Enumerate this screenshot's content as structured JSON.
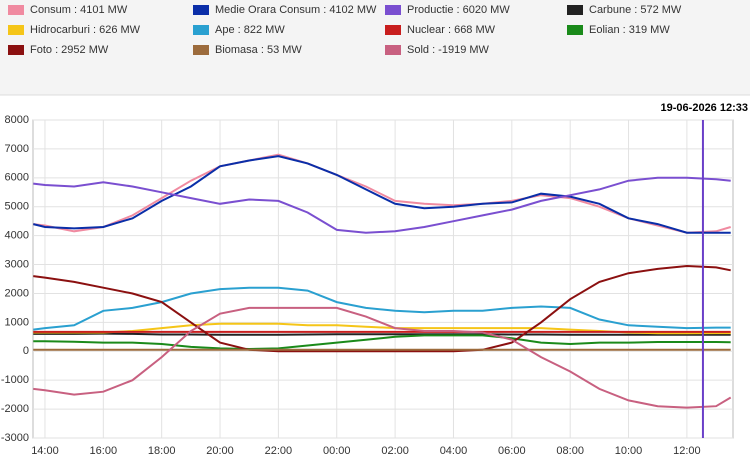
{
  "chart_data": {
    "type": "line",
    "x": [
      13.6,
      14,
      15,
      16,
      17,
      18,
      19,
      20,
      21,
      22,
      23,
      24,
      25,
      26,
      27,
      28,
      29,
      30,
      31,
      32,
      33,
      34,
      35,
      36,
      37,
      37.5
    ],
    "xlim": [
      13.59,
      37.58
    ],
    "xticks": [
      {
        "value": 14,
        "label": "14:00"
      },
      {
        "value": 16,
        "label": "16:00"
      },
      {
        "value": 18,
        "label": "18:00"
      },
      {
        "value": 20,
        "label": "20:00"
      },
      {
        "value": 22,
        "label": "22:00"
      },
      {
        "value": 24,
        "label": "00:00"
      },
      {
        "value": 26,
        "label": "02:00"
      },
      {
        "value": 28,
        "label": "04:00"
      },
      {
        "value": 30,
        "label": "06:00"
      },
      {
        "value": 32,
        "label": "08:00"
      },
      {
        "value": 34,
        "label": "10:00"
      },
      {
        "value": 36,
        "label": "12:00"
      }
    ],
    "ylim": [
      -3000,
      8000
    ],
    "yticks": [
      -3000,
      -2000,
      -1000,
      0,
      1000,
      2000,
      3000,
      4000,
      5000,
      6000,
      7000,
      8000
    ],
    "grid": true,
    "cursor_x": 36.55,
    "cursor_label": "19-06-2026 12:33",
    "cursor_color": "#6a3fc8",
    "series": [
      {
        "name": "Consum : 4101 MW",
        "color": "#f08aa0",
        "values": [
          4400,
          4350,
          4150,
          4300,
          4700,
          5300,
          5900,
          6400,
          6600,
          6800,
          6500,
          6100,
          5700,
          5200,
          5100,
          5050,
          5100,
          5200,
          5400,
          5300,
          5000,
          4600,
          4350,
          4100,
          4150,
          4300
        ]
      },
      {
        "name": "Medie Orara Consum : 4102 MW",
        "color": "#0a2ea8",
        "values": [
          4400,
          4300,
          4250,
          4300,
          4600,
          5200,
          5700,
          6400,
          6600,
          6750,
          6500,
          6100,
          5600,
          5100,
          4950,
          5000,
          5100,
          5150,
          5450,
          5350,
          5100,
          4600,
          4400,
          4100,
          4100,
          4100
        ]
      },
      {
        "name": "Productie : 6020 MW",
        "color": "#7a4fd0",
        "values": [
          5800,
          5750,
          5700,
          5850,
          5700,
          5500,
          5300,
          5100,
          5250,
          5200,
          4800,
          4200,
          4100,
          4150,
          4300,
          4500,
          4700,
          4900,
          5200,
          5400,
          5600,
          5900,
          6000,
          6000,
          5950,
          5900
        ]
      },
      {
        "name": "Carbune : 572 MW",
        "color": "#222222",
        "values": [
          600,
          600,
          600,
          610,
          600,
          580,
          580,
          570,
          570,
          570,
          580,
          590,
          590,
          590,
          590,
          590,
          590,
          580,
          580,
          570,
          570,
          570,
          570,
          570,
          570,
          570
        ]
      },
      {
        "name": "Hidrocarburi : 626 MW",
        "color": "#f5c518",
        "values": [
          650,
          650,
          650,
          650,
          700,
          800,
          900,
          950,
          950,
          950,
          900,
          900,
          850,
          800,
          800,
          800,
          800,
          800,
          800,
          750,
          700,
          650,
          620,
          620,
          630,
          630
        ]
      },
      {
        "name": "Ape : 822 MW",
        "color": "#2aa0d0",
        "values": [
          750,
          800,
          900,
          1400,
          1500,
          1700,
          2000,
          2150,
          2200,
          2200,
          2100,
          1700,
          1500,
          1400,
          1350,
          1400,
          1400,
          1500,
          1550,
          1500,
          1100,
          900,
          850,
          800,
          820,
          820
        ]
      },
      {
        "name": "Nuclear : 668 MW",
        "color": "#c81e1e",
        "values": [
          670,
          670,
          670,
          670,
          670,
          670,
          670,
          670,
          670,
          670,
          670,
          670,
          670,
          670,
          670,
          670,
          670,
          670,
          670,
          670,
          670,
          670,
          670,
          670,
          670,
          670
        ]
      },
      {
        "name": "Eolian : 319 MW",
        "color": "#1a8a1a",
        "values": [
          350,
          350,
          330,
          300,
          300,
          250,
          150,
          100,
          80,
          100,
          200,
          300,
          400,
          500,
          550,
          550,
          550,
          450,
          300,
          250,
          300,
          300,
          320,
          320,
          320,
          310
        ]
      },
      {
        "name": "Foto : 2952 MW",
        "color": "#8b1010",
        "values": [
          2600,
          2550,
          2400,
          2200,
          2000,
          1700,
          1000,
          300,
          50,
          0,
          0,
          0,
          0,
          0,
          0,
          0,
          50,
          300,
          1000,
          1800,
          2400,
          2700,
          2850,
          2950,
          2900,
          2800
        ]
      },
      {
        "name": "Biomasa : 53 MW",
        "color": "#9c6b3c",
        "values": [
          50,
          50,
          50,
          50,
          50,
          50,
          50,
          50,
          50,
          50,
          50,
          50,
          50,
          50,
          50,
          50,
          50,
          50,
          50,
          50,
          50,
          50,
          50,
          50,
          50,
          50
        ]
      },
      {
        "name": "Sold : -1919 MW",
        "color": "#c86080",
        "values": [
          -1300,
          -1350,
          -1500,
          -1400,
          -1000,
          -200,
          700,
          1300,
          1500,
          1500,
          1500,
          1500,
          1200,
          800,
          700,
          700,
          650,
          400,
          -200,
          -700,
          -1300,
          -1700,
          -1900,
          -1950,
          -1900,
          -1600
        ]
      }
    ]
  }
}
